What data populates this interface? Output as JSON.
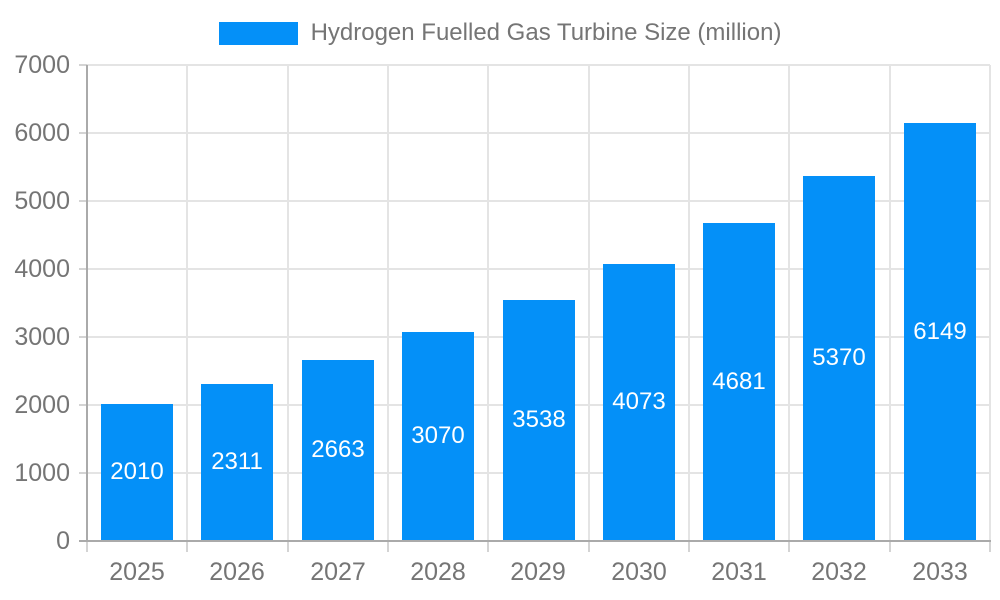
{
  "chart_data": {
    "type": "bar",
    "title": "",
    "legend": {
      "label": "Hydrogen Fuelled Gas Turbine Size (million)",
      "position": "top"
    },
    "categories": [
      "2025",
      "2026",
      "2027",
      "2028",
      "2029",
      "2030",
      "2031",
      "2032",
      "2033"
    ],
    "series": [
      {
        "name": "Hydrogen Fuelled Gas Turbine Size (million)",
        "values": [
          2010,
          2311,
          2663,
          3070,
          3538,
          4073,
          4681,
          5370,
          6149
        ]
      }
    ],
    "y_ticks": [
      0,
      1000,
      2000,
      3000,
      4000,
      5000,
      6000,
      7000
    ],
    "ylim": [
      0,
      7000
    ],
    "xlabel": "",
    "ylabel": "",
    "grid": true,
    "bar_value_labels_visible": true,
    "colors": {
      "bar": "#0490f8",
      "bar_label_text": "#ffffff",
      "grid_line": "#e4e4e4",
      "axis_line": "#aaaaaa",
      "tick_mark": "#d4d4d4",
      "axis_text": "#757575",
      "legend_text": "#757575",
      "background": "#ffffff"
    }
  }
}
